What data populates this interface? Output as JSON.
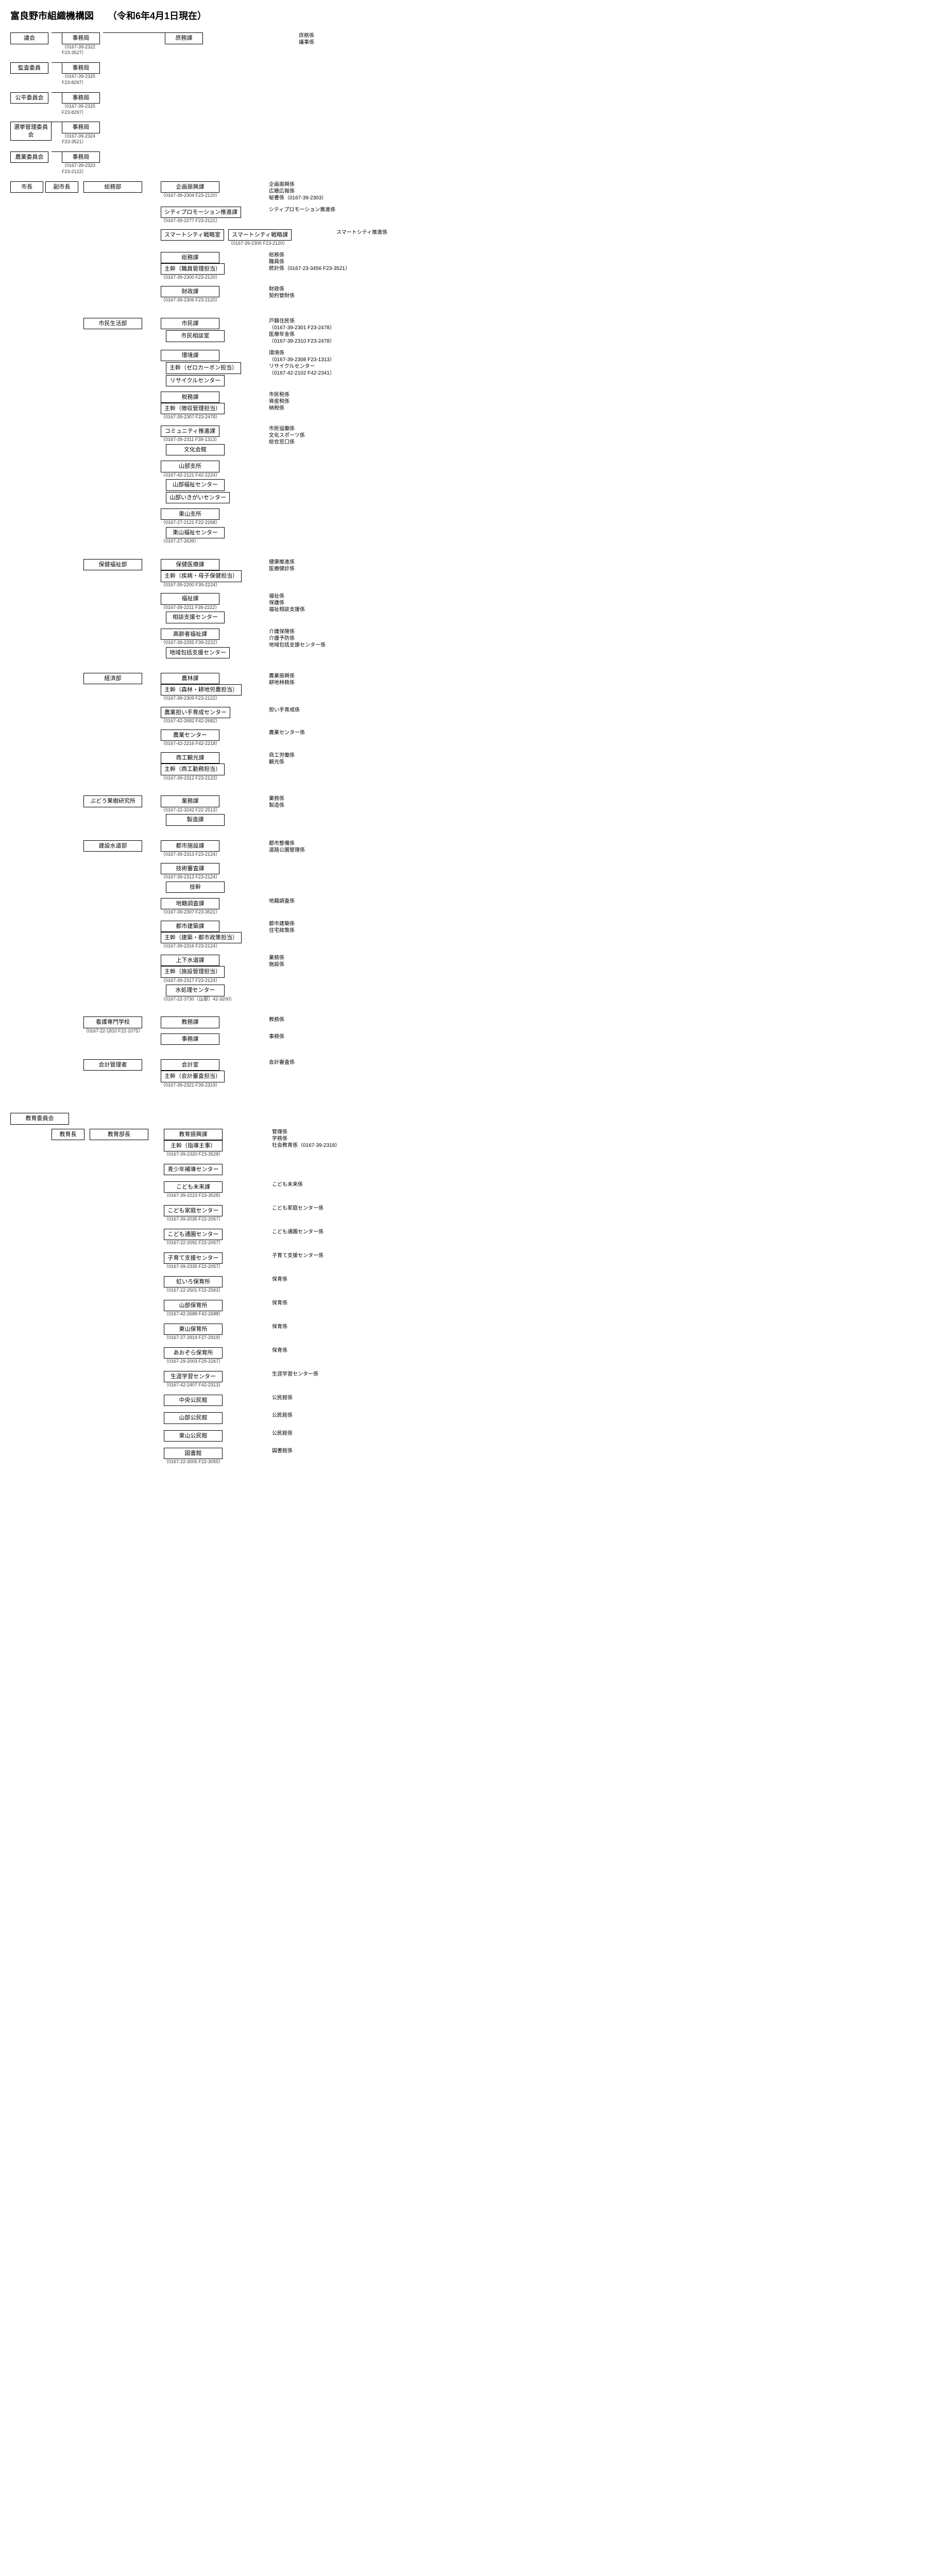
{
  "title": "富良野市組織機構図　　（令和6年4月1日現在）",
  "top_rows": [
    {
      "left": "議会",
      "mid": "事務局",
      "mid_phone": "（0167-39-2322 F23-3527）",
      "right": "庶務課",
      "kakari": [
        "庶務係",
        "議事係"
      ]
    },
    {
      "left": "監査委員",
      "mid": "事務局",
      "mid_phone": "（0167-39-2325 F23-8297）",
      "right": "",
      "kakari": []
    },
    {
      "left": "公平委員会",
      "mid": "事務局",
      "mid_phone": "（0167-39-2325 F23-8297）",
      "right": "",
      "kakari": []
    },
    {
      "left": "選挙管理委員会",
      "mid": "事務局",
      "mid_phone": "（0167-39-2324 F23-3521）",
      "right": "",
      "kakari": []
    },
    {
      "left": "農業委員会",
      "mid": "事務局",
      "mid_phone": "（0167-39-2323 F23-2122）",
      "right": "",
      "kakari": []
    }
  ],
  "mayor": "市長",
  "vice_mayor": "副市長",
  "departments": [
    {
      "name": "総務部",
      "sections": [
        {
          "name": "企画振興課",
          "phone": "（0167-39-2304 F23-2120）",
          "kakari": [
            "企画振興係",
            "広聴広報係",
            "秘書係（0167-39-2303）"
          ]
        },
        {
          "name": "シティプロモーション推進課",
          "phone": "（0167-39-2277 F23-2121）",
          "kakari": [
            "シティプロモーション推進係"
          ]
        },
        {
          "pre": "スマートシティ戦略室",
          "name": "スマートシティ戦略課",
          "phone": "（0167-39-2305 F23-2120）",
          "kakari": [
            "スマートシティ推進係"
          ]
        },
        {
          "name": "総務課",
          "sub": "主幹（職員管理担当）",
          "phone": "（0167-39-2300 F23-2120）",
          "kakari": [
            "総務係",
            "職員係",
            "統計係（0167-23-3456 F23-3521）"
          ]
        },
        {
          "name": "財政課",
          "phone": "（0167-39-2306 F23-2120）",
          "kakari": [
            "財政係",
            "契約管財係"
          ]
        }
      ]
    },
    {
      "name": "市民生活部",
      "sections": [
        {
          "name": "市民課",
          "subboxes": [
            "市民相談室"
          ],
          "kakari": [
            "戸籍住民係",
            "（0167-39-2301 F23-2478）",
            "医療年金係",
            "（0167-39-2310 F23-2478）"
          ]
        },
        {
          "name": "環境課",
          "subboxes": [
            "主幹（ゼロカーボン担当）",
            "リサイクルセンター"
          ],
          "kakari": [
            "環境係",
            "（0167-39-2308 F23-1313）",
            "リサイクルセンター",
            "（0167-42-2102 F42-2341）"
          ]
        },
        {
          "name": "税務課",
          "sub": "主幹（徴収管理担当）",
          "phone": "（0167-39-2307 F23-2478）",
          "kakari": [
            "市民税係",
            "資産税係",
            "納税係"
          ]
        },
        {
          "name": "コミュニティ推進課",
          "phone": "（0167-39-2311 F39-1313）",
          "subboxes": [
            "文化会館"
          ],
          "kakari": [
            "市民協働係",
            "文化スポーツ係",
            "総合窓口係"
          ]
        },
        {
          "name": "山部支所",
          "phone": "（0167-42-2121 F42-2224）",
          "subboxes": [
            "山部福祉センター",
            "山部いきがいセンター"
          ],
          "kakari": []
        },
        {
          "name": "東山支所",
          "phone": "（0167-27-2121 F22-2268）",
          "subboxes": [
            "東山福祉センター"
          ],
          "phone2": "（0167-27-2639）",
          "kakari": []
        }
      ]
    },
    {
      "name": "保健福祉部",
      "sections": [
        {
          "name": "保健医療課",
          "sub": "主幹（疾病・母子保健担当）",
          "phone": "（0167-39-2200 F39-2224）",
          "kakari": [
            "健康推進係",
            "医療健診係"
          ]
        },
        {
          "name": "福祉課",
          "phone": "（0167-39-2211 F39-2222）",
          "subboxes": [
            "相談支援センター"
          ],
          "kakari": [
            "福祉係",
            "保護係",
            "福祉相談支援係"
          ]
        },
        {
          "name": "高齢者福祉課",
          "phone": "（0167-39-2255 F39-2222）",
          "subboxes": [
            "地域包括支援センター"
          ],
          "kakari": [
            "介護保険係",
            "介護予防係",
            "地域包括支援センター係"
          ]
        }
      ]
    },
    {
      "name": "経済部",
      "sections": [
        {
          "name": "農林課",
          "phone": "（0167-39-2309 F23-2122）",
          "sub": "主幹（森林・耕地労農担当）",
          "kakari": [
            "農業振興係",
            "耕地林務係"
          ]
        },
        {
          "name": "農業担い手育成センター",
          "phone": "（0167-42-2682 F42-2682）",
          "kakari": [
            "担い手育成係"
          ]
        },
        {
          "name": "農業センター",
          "phone": "（0167-42-2216 F42-2218）",
          "kakari": [
            "農業センター係"
          ]
        },
        {
          "name": "商工観光課",
          "phone": "（0167-39-2312 F23-2123）",
          "sub": "主幹（商工勤務担当）",
          "kakari": [
            "商工労働係",
            "観光係"
          ]
        }
      ]
    },
    {
      "name": "ぶどう果樹研究所",
      "sections": [
        {
          "name": "業務課",
          "phone": "（0167-22-3242 F22-2513）",
          "subboxes": [
            "製造課"
          ],
          "kakari": [
            "業務係",
            "",
            "製造係"
          ]
        }
      ]
    },
    {
      "name": "建設水道部",
      "sections": [
        {
          "name": "都市施設課",
          "phone": "（0167-39-2313 F23-2124）",
          "kakari": [
            "都市整備係",
            "道路公園管理係"
          ]
        },
        {
          "name": "技術審査課",
          "subboxes": [
            "技幹"
          ],
          "phone": "（0167-39-2313 F23-2124）",
          "kakari": []
        },
        {
          "name": "地籍調査課",
          "phone": "（0167-39-2307 F23-3521）",
          "kakari": [
            "地籍調査係"
          ]
        },
        {
          "name": "都市建築課",
          "sub": "主幹（建築・都市政策担当）",
          "phone": "（0167-39-2316 F23-2124）",
          "kakari": [
            "都市建築係",
            "住宅政策係"
          ]
        },
        {
          "name": "上下水道課",
          "sub": "主幹（施設管理担当）",
          "phone": "（0167-39-2317 F23-2124）",
          "subboxes": [
            "水処理センター"
          ],
          "phone2": "（0167-22-3730（山部）42-3200）",
          "kakari": [
            "業務係",
            "施設係"
          ]
        }
      ]
    },
    {
      "name": "看護専門学校",
      "phone": "（0167-22-1810 F22-1075）",
      "sections": [
        {
          "name": "教務課",
          "kakari": [
            "教務係"
          ]
        },
        {
          "name": "事務課",
          "kakari": [
            "事務係"
          ]
        }
      ]
    },
    {
      "name": "会計管理者",
      "sections": [
        {
          "name": "会計室",
          "sub": "主幹（会計審査担当）",
          "phone": "（0167-39-2321 F39-2319）",
          "kakari": [
            "会計審査係"
          ]
        }
      ]
    }
  ],
  "edu_board": "教育委員会",
  "edu_chief": "教育長",
  "edu_dept": "教育部長",
  "edu_sections": [
    {
      "name": "教育振興課",
      "sub": "主幹（指導主事）",
      "phone": "（0167-39-2320 F23-3528）",
      "kakari": [
        "管理係",
        "学務係",
        "社会教育係（0167-39-2318）"
      ]
    },
    {
      "name": "青少年補導センター",
      "kakari": []
    },
    {
      "name": "こども未来課",
      "phone": "（0167-39-2223 F23-3528）",
      "kakari": [
        "こども未来係"
      ]
    },
    {
      "name": "こども家庭センター",
      "phone": "（0167-39-2035 F22-2057）",
      "kakari": [
        "こども家庭センター係"
      ]
    },
    {
      "name": "こども通園センター",
      "phone": "（0167-22-2091 F22-2057）",
      "kakari": [
        "こども通園センター係"
      ]
    },
    {
      "name": "子育て支援センター",
      "phone": "（0167-39-2335 F22-2057）",
      "kakari": [
        "子育て支援センター係"
      ]
    },
    {
      "name": "虹いろ保育所",
      "phone": "（0167-22-2501 F22-2563）",
      "kakari": [
        "保育係"
      ]
    },
    {
      "name": "山部保育所",
      "phone": "（0167-42-2688 F42-2688）",
      "kakari": [
        "保育係"
      ]
    },
    {
      "name": "東山保育所",
      "phone": "（0167-27-2919 F27-2919）",
      "kakari": [
        "保育係"
      ]
    },
    {
      "name": "あおぞら保育所",
      "phone": "（0167-29-2003 F29-2267）",
      "kakari": [
        "保育係"
      ]
    },
    {
      "name": "生涯学習センター",
      "phone": "（0167-42-2407 F42-2313）",
      "kakari": [
        "生涯学習センター係"
      ]
    },
    {
      "name": "中央公民館",
      "kakari": [
        "公民館係"
      ]
    },
    {
      "name": "山部公民館",
      "kakari": [
        "公民館係"
      ]
    },
    {
      "name": "東山公民館",
      "kakari": [
        "公民館係"
      ]
    },
    {
      "name": "図書館",
      "phone": "（0167-22-3005 F22-3055）",
      "kakari": [
        "図書館係"
      ]
    }
  ]
}
